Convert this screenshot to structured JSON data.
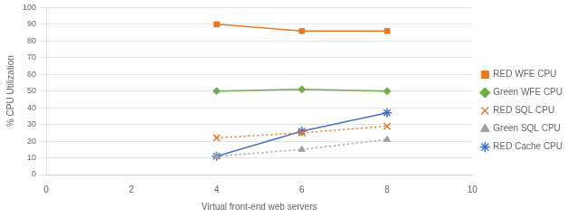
{
  "chart_data": {
    "type": "line",
    "x": [
      4,
      6,
      8
    ],
    "series": [
      {
        "name": "RED WFE CPU",
        "color": "#E87722",
        "values": [
          90,
          86,
          86
        ],
        "marker": "square",
        "line_style": "solid"
      },
      {
        "name": "Green WFE CPU",
        "color": "#70AD47",
        "values": [
          50,
          51,
          50
        ],
        "marker": "diamond",
        "line_style": "solid"
      },
      {
        "name": "RED SQL CPU",
        "color": "#E87722",
        "values": [
          22,
          25,
          29
        ],
        "marker": "x",
        "line_style": "dotted"
      },
      {
        "name": "Green SQL CPU",
        "color": "#A0A0A0",
        "values": [
          11,
          15,
          21
        ],
        "marker": "triangle",
        "line_style": "dotted"
      },
      {
        "name": "RED Cache CPU",
        "color": "#4472C4",
        "values": [
          11,
          26,
          37
        ],
        "marker": "star",
        "line_style": "solid"
      }
    ],
    "xlabel": "Virtual front-end web servers",
    "ylabel": "% CPU Utilization",
    "xlim": [
      0,
      10
    ],
    "ylim": [
      0,
      100
    ],
    "xticks": [
      0,
      2,
      4,
      6,
      8,
      10
    ],
    "yticks": [
      0,
      10,
      20,
      30,
      40,
      50,
      60,
      70,
      80,
      90,
      100
    ],
    "grid": "y",
    "legend": "right"
  }
}
